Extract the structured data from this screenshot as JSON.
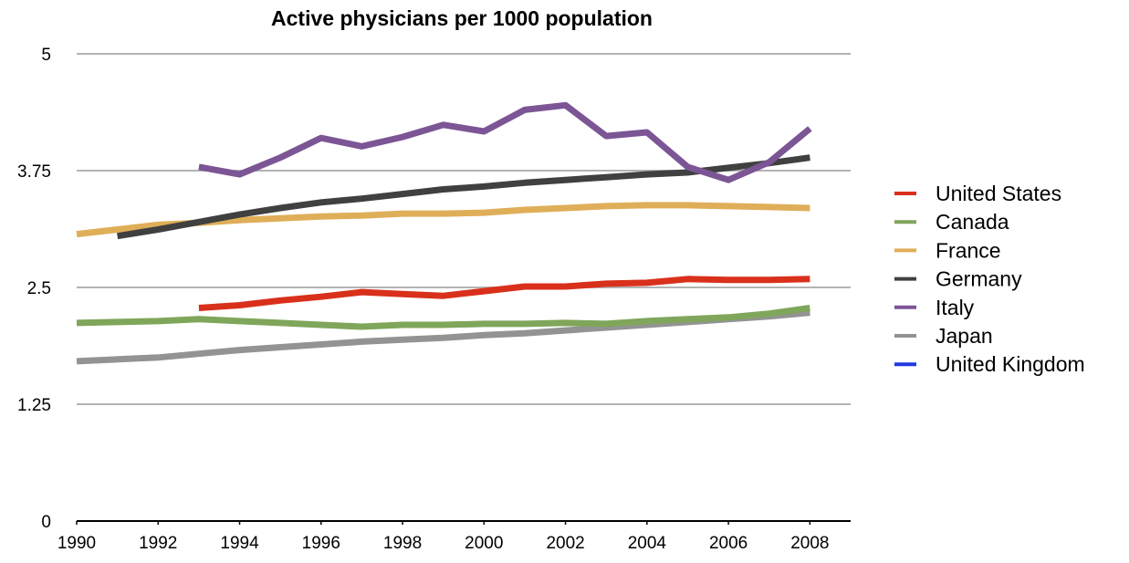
{
  "chart_data": {
    "type": "line",
    "title": "Active physicians per 1000 population",
    "xlabel": "",
    "ylabel": "",
    "xlim": [
      1990,
      2009
    ],
    "ylim": [
      0,
      5
    ],
    "x_ticks": [
      "1990",
      "1992",
      "1994",
      "1996",
      "1998",
      "2000",
      "2002",
      "2004",
      "2006",
      "2008"
    ],
    "y_ticks": [
      "0",
      "1.25",
      "2.5",
      "3.75",
      "5"
    ],
    "grid": true,
    "legend_position": "right",
    "series": [
      {
        "name": "United States",
        "color": "#d9301b",
        "x": [
          1993,
          1994,
          1995,
          1996,
          1997,
          1998,
          1999,
          2000,
          2001,
          2002,
          2003,
          2004,
          2005,
          2006,
          2007,
          2008
        ],
        "y": [
          2.28,
          2.31,
          2.36,
          2.4,
          2.45,
          2.43,
          2.41,
          2.46,
          2.51,
          2.51,
          2.54,
          2.55,
          2.59,
          2.58,
          2.58,
          2.59
        ]
      },
      {
        "name": "Canada",
        "color": "#7fa65a",
        "x": [
          1990,
          1991,
          1992,
          1993,
          1994,
          1995,
          1996,
          1997,
          1998,
          1999,
          2000,
          2001,
          2002,
          2003,
          2004,
          2005,
          2006,
          2007,
          2008
        ],
        "y": [
          2.12,
          2.13,
          2.14,
          2.16,
          2.14,
          2.12,
          2.1,
          2.08,
          2.1,
          2.1,
          2.11,
          2.11,
          2.12,
          2.11,
          2.14,
          2.16,
          2.18,
          2.22,
          2.28
        ]
      },
      {
        "name": "France",
        "color": "#dfae58",
        "x": [
          1990,
          1991,
          1992,
          1993,
          1994,
          1995,
          1996,
          1997,
          1998,
          1999,
          2000,
          2001,
          2002,
          2003,
          2004,
          2005,
          2006,
          2007,
          2008
        ],
        "y": [
          3.07,
          3.12,
          3.17,
          3.19,
          3.22,
          3.24,
          3.26,
          3.27,
          3.29,
          3.29,
          3.3,
          3.33,
          3.35,
          3.37,
          3.38,
          3.38,
          3.37,
          3.36,
          3.35
        ]
      },
      {
        "name": "Germany",
        "color": "#404040",
        "x": [
          1991,
          1992,
          1993,
          1994,
          1995,
          1996,
          1997,
          1998,
          1999,
          2000,
          2001,
          2002,
          2003,
          2004,
          2005,
          2006,
          2007,
          2008
        ],
        "y": [
          3.05,
          3.12,
          3.2,
          3.28,
          3.35,
          3.41,
          3.45,
          3.5,
          3.55,
          3.58,
          3.62,
          3.65,
          3.68,
          3.71,
          3.73,
          3.78,
          3.83,
          3.89
        ]
      },
      {
        "name": "Italy",
        "color": "#7c5595",
        "x": [
          1993,
          1994,
          1995,
          1996,
          1997,
          1998,
          1999,
          2000,
          2001,
          2002,
          2003,
          2004,
          2005,
          2006,
          2007,
          2008
        ],
        "y": [
          3.79,
          3.71,
          3.89,
          4.1,
          4.01,
          4.11,
          4.24,
          4.17,
          4.4,
          4.45,
          4.12,
          4.16,
          3.79,
          3.65,
          3.84,
          4.2
        ]
      },
      {
        "name": "Japan",
        "color": "#939393",
        "x": [
          1990,
          1991,
          1992,
          1993,
          1994,
          1995,
          1996,
          1997,
          1998,
          1999,
          2000,
          2001,
          2002,
          2003,
          2004,
          2005,
          2006,
          2007,
          2008
        ],
        "y": [
          1.71,
          1.73,
          1.75,
          1.79,
          1.83,
          1.86,
          1.89,
          1.92,
          1.94,
          1.96,
          1.99,
          2.01,
          2.04,
          2.07,
          2.1,
          2.13,
          2.16,
          2.19,
          2.23
        ]
      },
      {
        "name": "United Kingdom",
        "color": "#2038e0",
        "x": [],
        "y": []
      }
    ]
  }
}
